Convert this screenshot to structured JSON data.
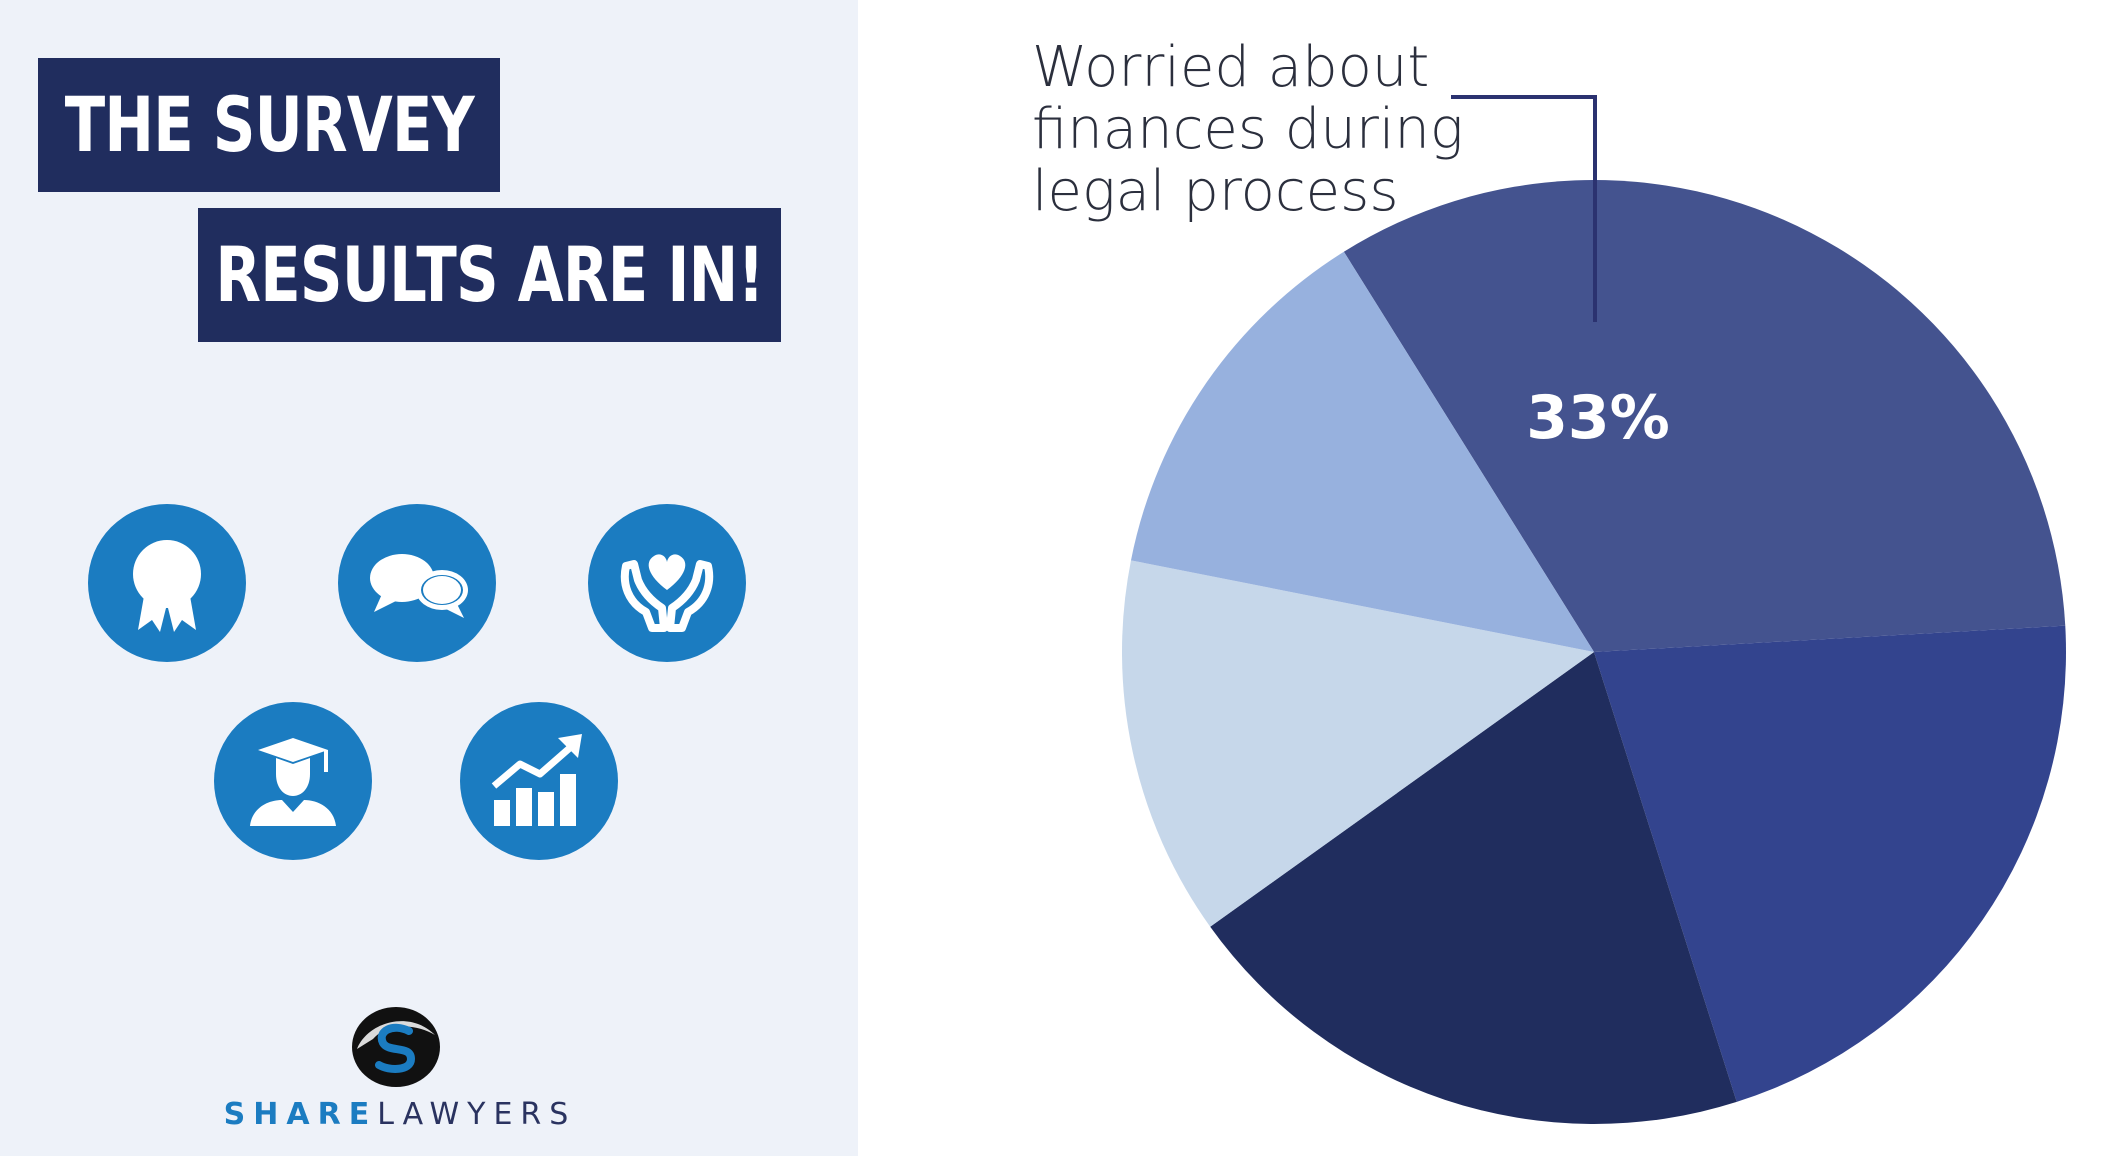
{
  "header": {
    "title_line_1": "THE SURVEY",
    "title_line_2": "RESULTS ARE IN!"
  },
  "icons": [
    {
      "name": "award-ribbon-icon"
    },
    {
      "name": "speech-bubbles-icon"
    },
    {
      "name": "heart-hands-icon"
    },
    {
      "name": "graduate-icon"
    },
    {
      "name": "growth-chart-icon"
    }
  ],
  "brand": {
    "name_part_1": "SHARE",
    "name_part_2": "LAWYERS"
  },
  "colors": {
    "title_bg": "#202d5e",
    "panel_bg": "#eef2f9",
    "icon_blue": "#1b7cc1",
    "slice_1": "#44538f",
    "slice_2": "#33448e",
    "slice_3": "#202d5e",
    "slice_4": "#c6d7ea",
    "slice_5": "#97b1de"
  },
  "chart_data": {
    "type": "pie",
    "annotation": {
      "lines": [
        "Worried about",
        "finances during",
        "legal process"
      ]
    },
    "slices": [
      {
        "value": 33,
        "label": "33%",
        "color": "#44538f"
      },
      {
        "value": 21,
        "color": "#33448e"
      },
      {
        "value": 20,
        "color": "#202d5e"
      },
      {
        "value": 13,
        "color": "#c6d7ea"
      },
      {
        "value": 13,
        "color": "#97b1de"
      }
    ],
    "start_angle_deg": 238
  }
}
